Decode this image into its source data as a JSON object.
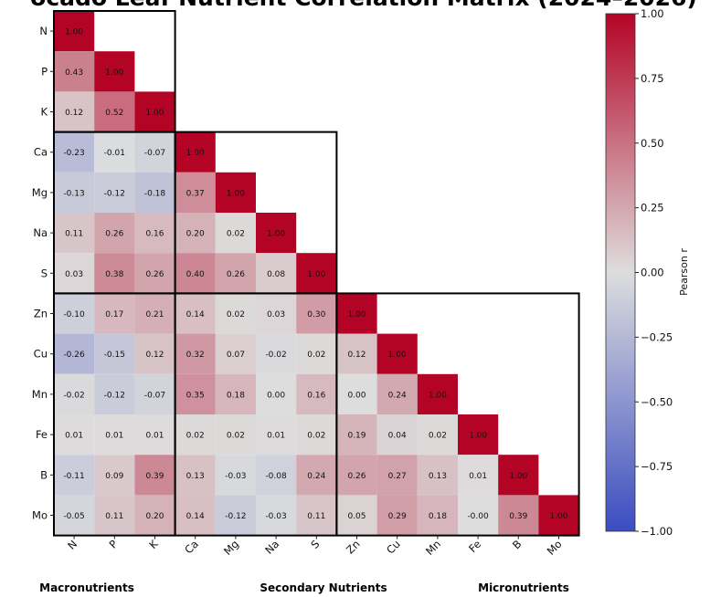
{
  "chart_data": {
    "type": "heatmap",
    "title": "ocado Leaf Nutrient Correlation Matrix (2024–2026)",
    "labels": [
      "N",
      "P",
      "K",
      "Ca",
      "Mg",
      "Na",
      "S",
      "Zn",
      "Cu",
      "Mn",
      "Fe",
      "B",
      "Mo"
    ],
    "matrix": [
      [
        1.0
      ],
      [
        0.43,
        1.0
      ],
      [
        0.12,
        0.52,
        1.0
      ],
      [
        -0.23,
        -0.01,
        -0.07,
        1.0
      ],
      [
        -0.13,
        -0.12,
        -0.18,
        0.37,
        1.0
      ],
      [
        0.11,
        0.26,
        0.16,
        0.2,
        0.02,
        1.0
      ],
      [
        0.03,
        0.38,
        0.26,
        0.4,
        0.26,
        0.08,
        1.0
      ],
      [
        -0.1,
        0.17,
        0.21,
        0.14,
        0.02,
        0.03,
        0.3,
        1.0
      ],
      [
        -0.26,
        -0.15,
        0.12,
        0.32,
        0.07,
        -0.02,
        0.02,
        0.12,
        1.0
      ],
      [
        -0.02,
        -0.12,
        -0.07,
        0.35,
        0.18,
        0.0,
        0.16,
        0.0,
        0.24,
        1.0
      ],
      [
        0.01,
        0.01,
        0.01,
        0.02,
        0.02,
        0.01,
        0.02,
        0.19,
        0.04,
        0.02,
        1.0
      ],
      [
        -0.11,
        0.09,
        0.39,
        0.13,
        -0.03,
        -0.08,
        0.24,
        0.26,
        0.27,
        0.13,
        0.01,
        1.0
      ],
      [
        -0.05,
        0.11,
        0.2,
        0.14,
        -0.12,
        -0.03,
        0.11,
        0.05,
        0.29,
        0.18,
        -0.0,
        0.39,
        1.0
      ]
    ],
    "groups": [
      {
        "name": "Macronutrients",
        "members": [
          "N",
          "P",
          "K"
        ]
      },
      {
        "name": "Secondary Nutrients",
        "members": [
          "Ca",
          "Mg",
          "Na",
          "S"
        ]
      },
      {
        "name": "Micronutrients",
        "members": [
          "Zn",
          "Cu",
          "Mn",
          "Fe",
          "B",
          "Mo"
        ]
      }
    ],
    "colorbar": {
      "label": "Pearson r",
      "range": [
        -1.0,
        1.0
      ],
      "ticks": [
        "1.00",
        "0.75",
        "0.50",
        "0.25",
        "0.00",
        "−0.25",
        "−0.50",
        "−0.75",
        "−1.00"
      ],
      "colormap": "coolwarm"
    },
    "colors": {
      "low": "#3b4cc0",
      "mid": "#dddddd",
      "high": "#b40426",
      "group_border": "#000000"
    }
  }
}
